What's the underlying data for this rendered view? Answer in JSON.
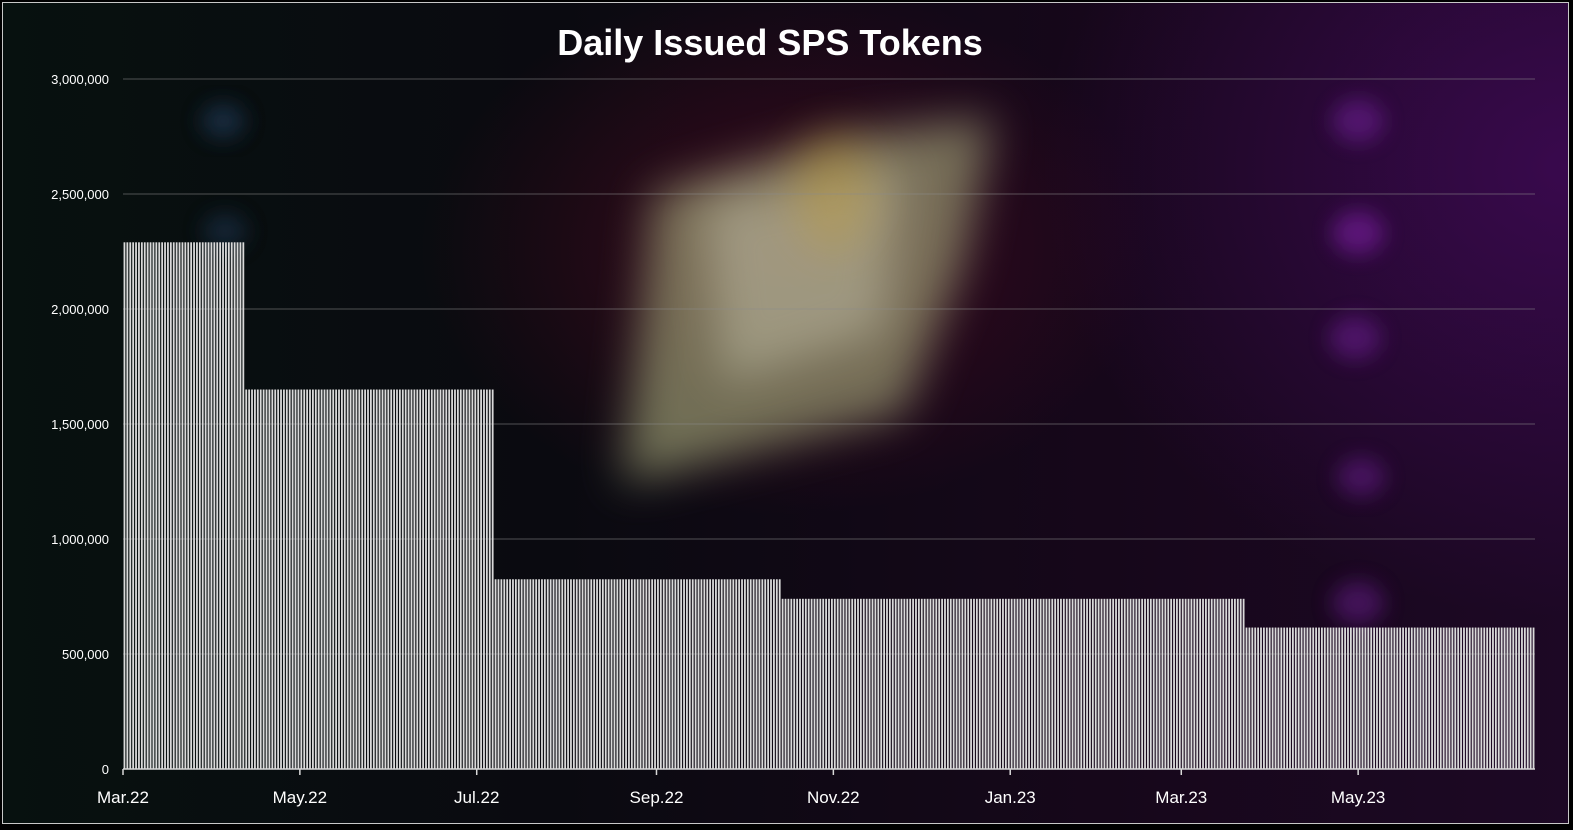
{
  "chart_data": {
    "type": "bar",
    "title": "Daily Issued SPS Tokens",
    "xlabel": "",
    "ylabel": "",
    "ylim": [
      0,
      3000000
    ],
    "y_ticks": [
      0,
      500000,
      1000000,
      1500000,
      2000000,
      2500000,
      3000000
    ],
    "y_tick_labels": [
      "0",
      "500,000",
      "1,000,000",
      "1,500,000",
      "2,000,000",
      "2,500,000",
      "3,000,000"
    ],
    "x_range": [
      "2022-03-01",
      "2023-06-30"
    ],
    "x_tick_labels": [
      "Mar.22",
      "May.22",
      "Jul.22",
      "Sep.22",
      "Nov.22",
      "Jan.23",
      "Mar.23",
      "May.23"
    ],
    "x_tick_dates": [
      "2022-03-01",
      "2022-05-01",
      "2022-07-01",
      "2022-09-01",
      "2022-11-01",
      "2023-01-01",
      "2023-03-01",
      "2023-05-01"
    ],
    "grid": true,
    "legend": "none",
    "bar_color": "#d9d9d9",
    "segments": [
      {
        "start": "2022-03-01",
        "end": "2022-04-11",
        "daily_value": 2290000
      },
      {
        "start": "2022-04-12",
        "end": "2022-07-06",
        "daily_value": 1650000
      },
      {
        "start": "2022-07-07",
        "end": "2022-10-13",
        "daily_value": 825000
      },
      {
        "start": "2022-10-14",
        "end": "2023-03-22",
        "daily_value": 740000
      },
      {
        "start": "2023-03-23",
        "end": "2023-06-30",
        "daily_value": 615000
      }
    ]
  }
}
